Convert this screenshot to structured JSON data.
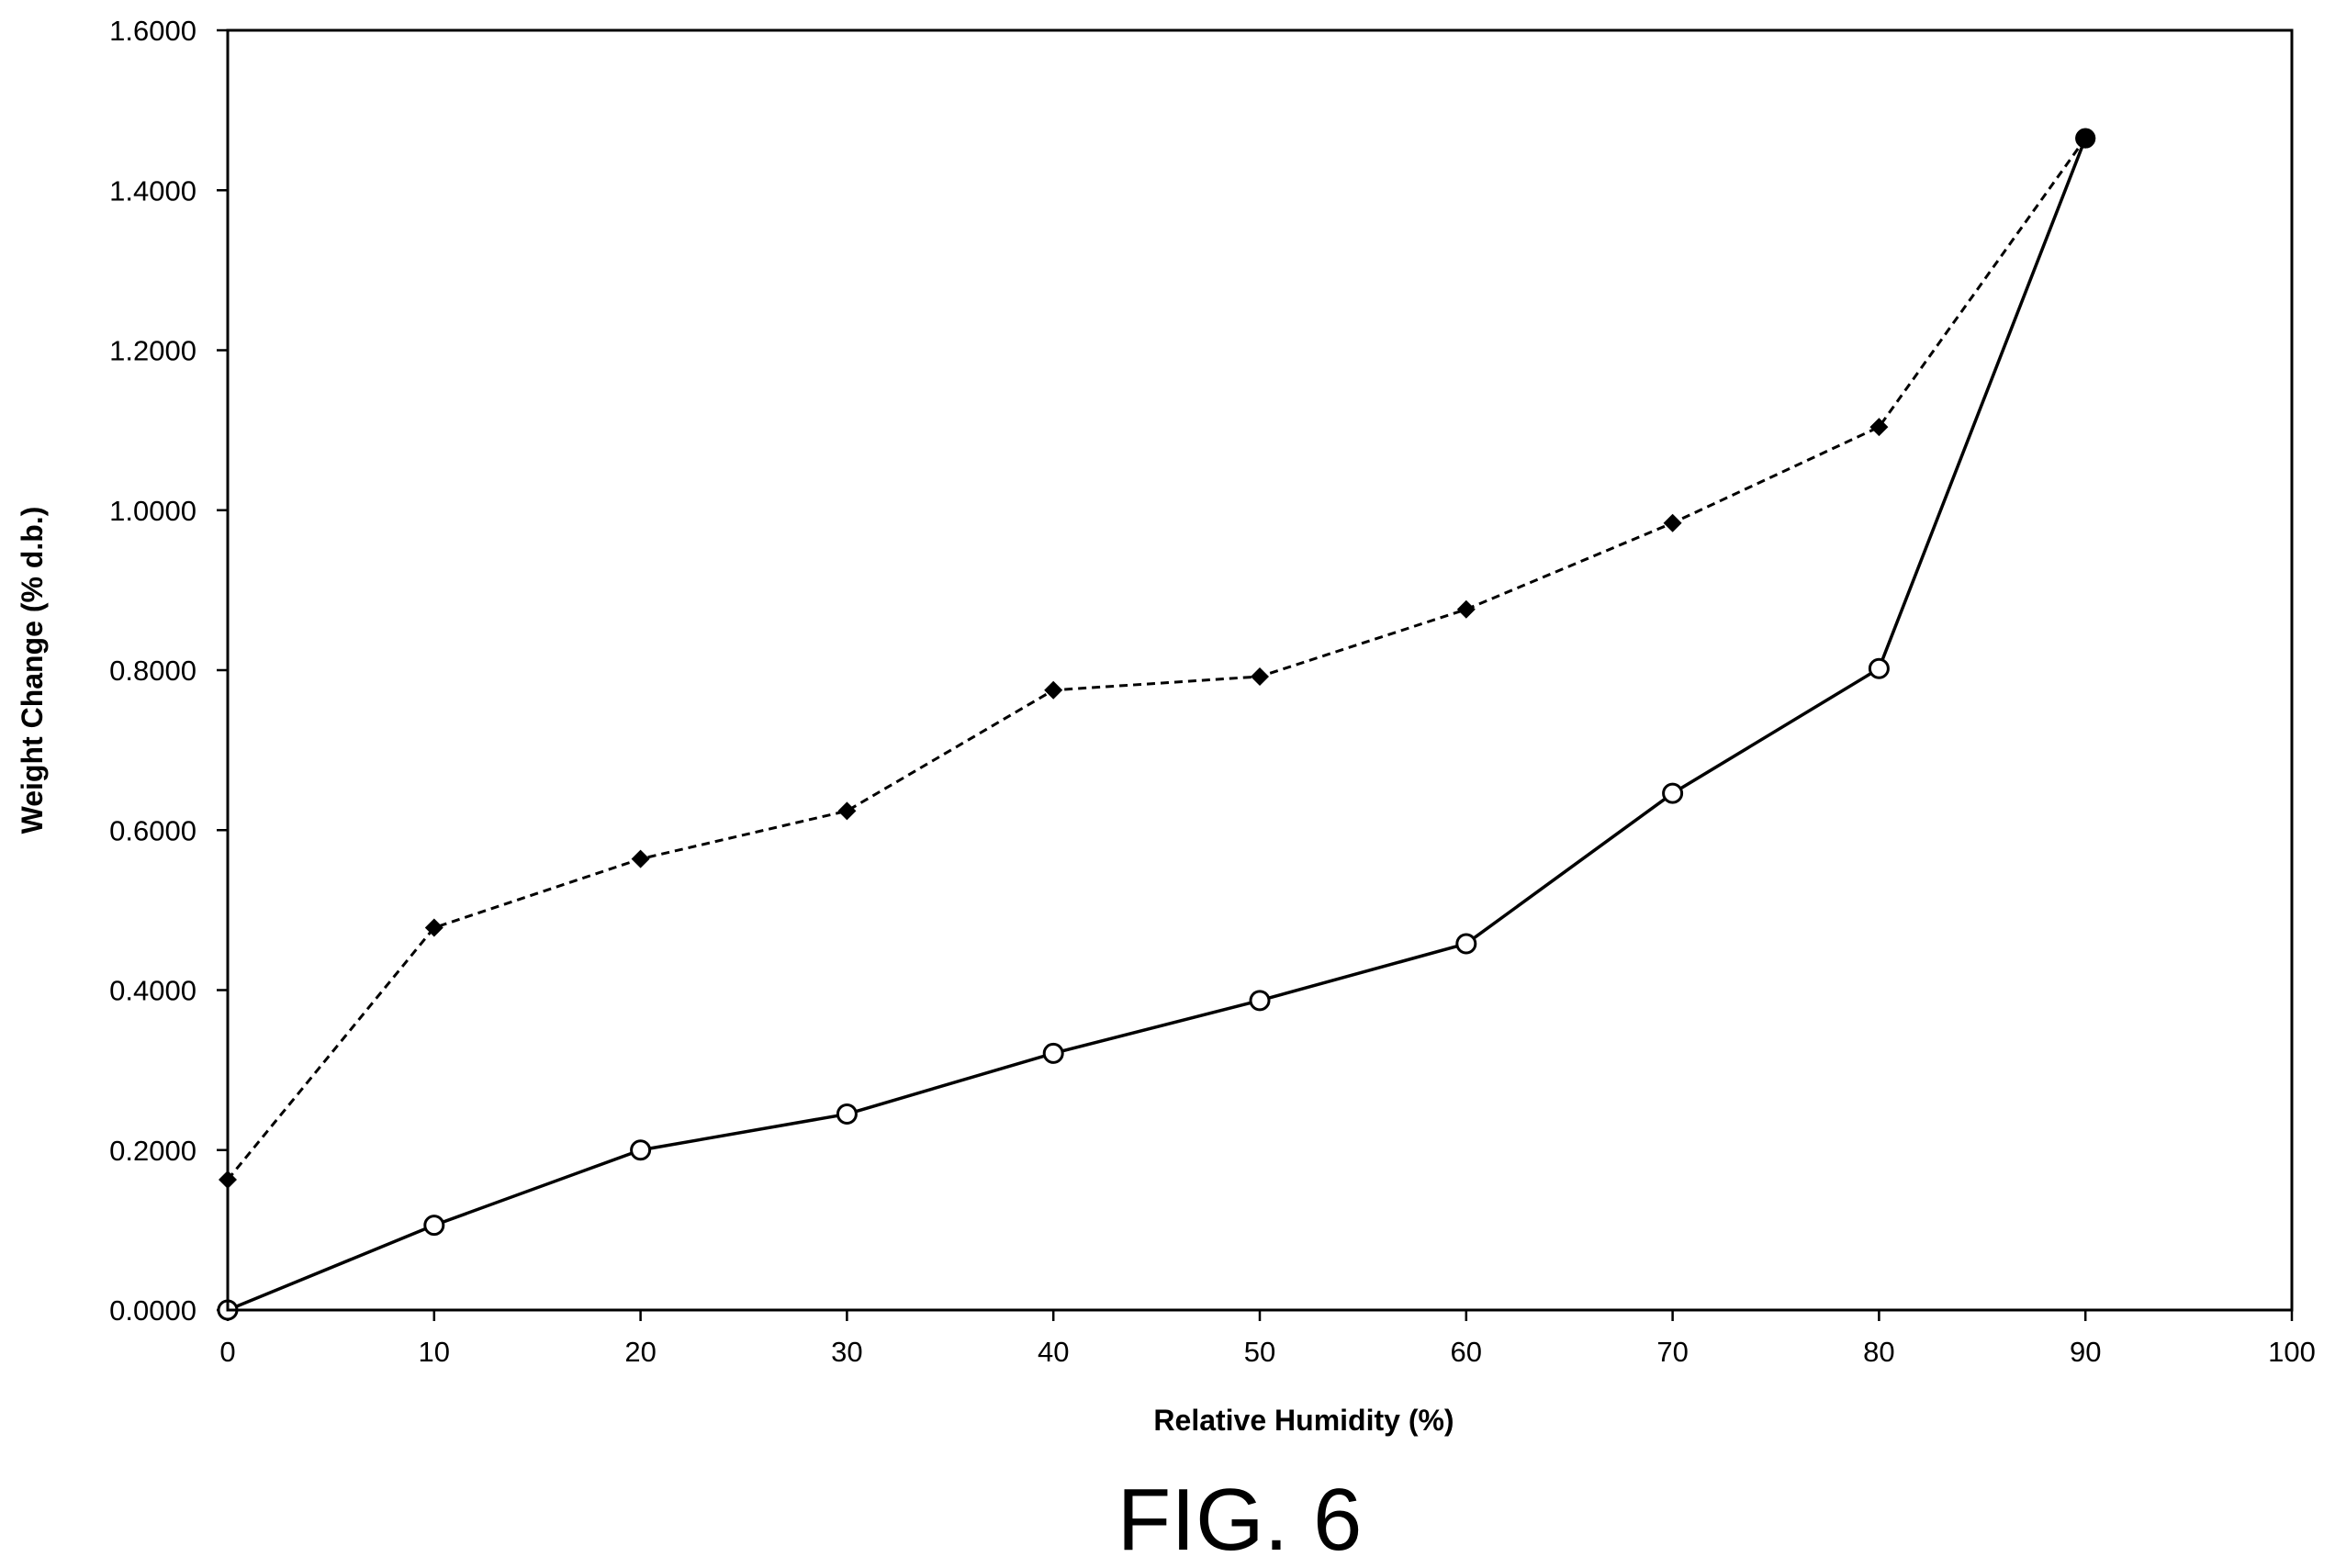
{
  "figure": {
    "caption": "FIG. 6"
  },
  "chart_data": {
    "type": "line",
    "xlabel": "Relative Humidity (%)",
    "ylabel": "Weight Change (% d.b.)",
    "xlim": [
      0,
      100
    ],
    "ylim": [
      0,
      1.6
    ],
    "xticks": [
      0,
      10,
      20,
      30,
      40,
      50,
      60,
      70,
      80,
      90,
      100
    ],
    "xtick_labels": [
      "0",
      "10",
      "20",
      "30",
      "40",
      "50",
      "60",
      "70",
      "80",
      "90",
      "100"
    ],
    "yticks": [
      0,
      0.2,
      0.4,
      0.6,
      0.8,
      1.0,
      1.2,
      1.4,
      1.6
    ],
    "ytick_labels": [
      "0.0000",
      "0.2000",
      "0.4000",
      "0.6000",
      "0.8000",
      "1.0000",
      "1.2000",
      "1.4000",
      "1.6000"
    ],
    "grid": false,
    "legend": "none",
    "series": [
      {
        "x": [
          0,
          10,
          20,
          30,
          40,
          50,
          60,
          70,
          80,
          90
        ],
        "values": [
          0.163,
          0.478,
          0.564,
          0.624,
          0.775,
          0.792,
          0.876,
          0.984,
          1.104,
          1.465
        ],
        "line_style": "dashed",
        "marker": "filled-diamond",
        "color": "#000000"
      },
      {
        "x": [
          0,
          10,
          20,
          30,
          40,
          50,
          60,
          70,
          80,
          90
        ],
        "values": [
          0.0,
          0.106,
          0.2,
          0.245,
          0.321,
          0.387,
          0.458,
          0.646,
          0.802,
          1.465
        ],
        "line_style": "solid",
        "marker": "open-circle",
        "color": "#000000"
      }
    ]
  }
}
